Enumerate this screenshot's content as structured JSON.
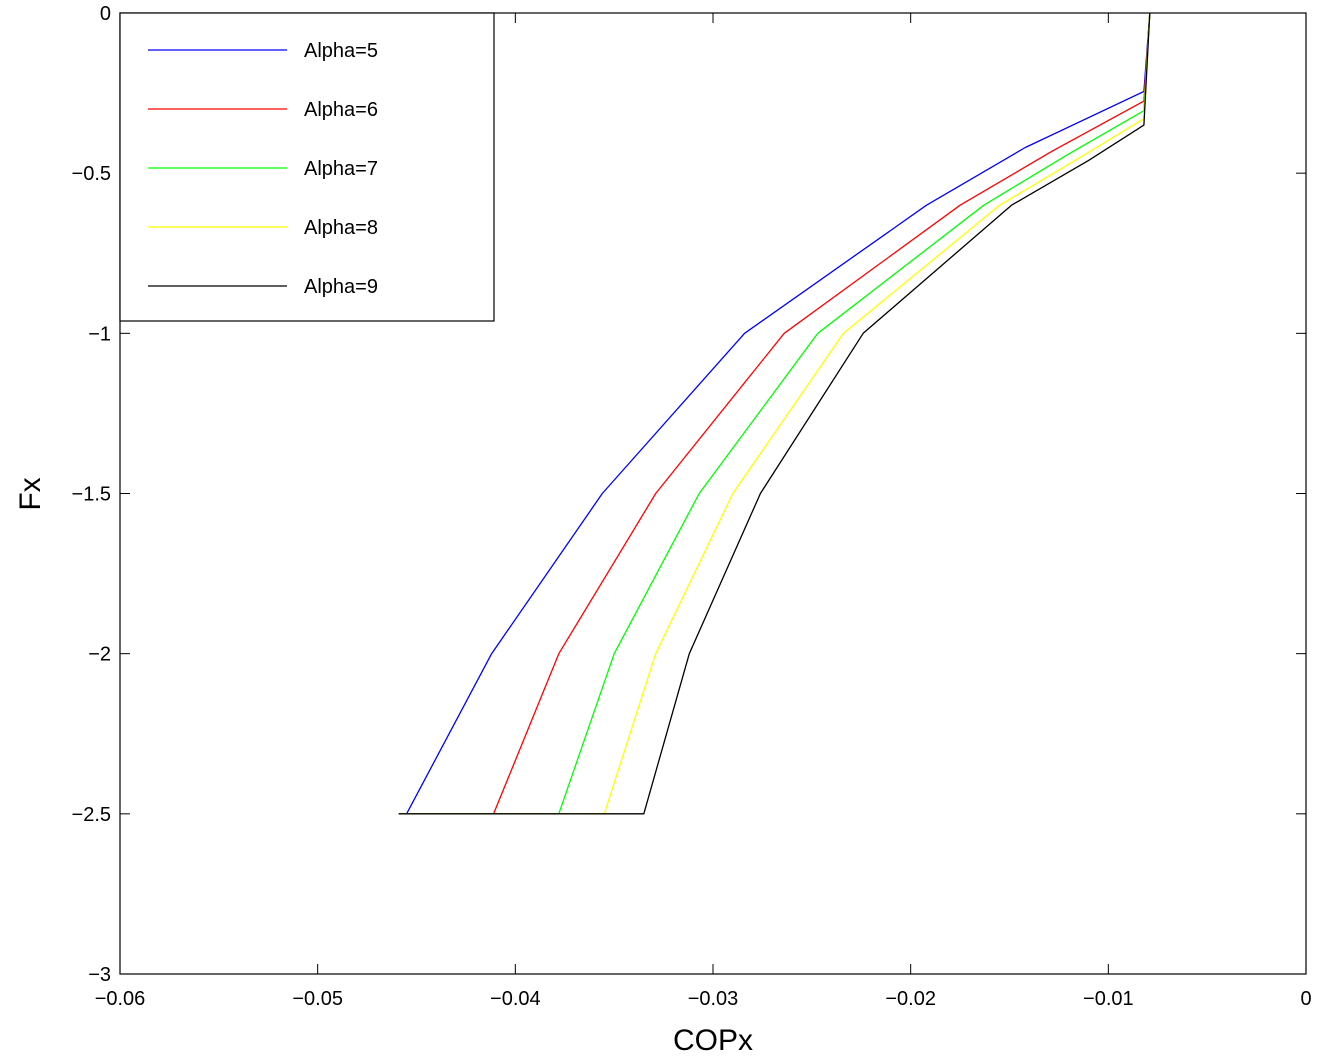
{
  "chart_data": {
    "type": "line",
    "title": "",
    "xlabel": "COPx",
    "ylabel": "Fx",
    "xlim": [
      -0.06,
      0
    ],
    "ylim": [
      -3,
      0
    ],
    "xticks": [
      -0.06,
      -0.05,
      -0.04,
      -0.03,
      -0.02,
      -0.01,
      0
    ],
    "xtick_labels": [
      "−0.06",
      "−0.05",
      "−0.04",
      "−0.03",
      "−0.02",
      "−0.01",
      "0"
    ],
    "yticks": [
      0,
      -0.5,
      -1,
      -1.5,
      -2,
      -2.5,
      -3
    ],
    "ytick_labels": [
      "0",
      "−0.5",
      "−1",
      "−1.5",
      "−2",
      "−2.5",
      "−3"
    ],
    "grid": false,
    "legend_position": "top-left",
    "series": [
      {
        "name": "Alpha=5",
        "color": "#0000ff",
        "points": [
          [
            -0.0459,
            -2.5
          ],
          [
            -0.0455,
            -2.5
          ],
          [
            -0.0412,
            -2.0
          ],
          [
            -0.0356,
            -1.5
          ],
          [
            -0.0284,
            -1.0
          ],
          [
            -0.0192,
            -0.6
          ],
          [
            -0.0142,
            -0.42
          ],
          [
            -0.0082,
            -0.245
          ],
          [
            -0.0079,
            0
          ]
        ]
      },
      {
        "name": "Alpha=6",
        "color": "#ff0000",
        "points": [
          [
            -0.0459,
            -2.5
          ],
          [
            -0.0411,
            -2.5
          ],
          [
            -0.0378,
            -2.0
          ],
          [
            -0.0329,
            -1.5
          ],
          [
            -0.0264,
            -1.0
          ],
          [
            -0.0175,
            -0.6
          ],
          [
            -0.0128,
            -0.43
          ],
          [
            -0.0082,
            -0.275
          ],
          [
            -0.0079,
            0
          ]
        ]
      },
      {
        "name": "Alpha=7",
        "color": "#00ff00",
        "points": [
          [
            -0.0459,
            -2.5
          ],
          [
            -0.0378,
            -2.5
          ],
          [
            -0.035,
            -2.0
          ],
          [
            -0.0307,
            -1.5
          ],
          [
            -0.0247,
            -1.0
          ],
          [
            -0.0163,
            -0.6
          ],
          [
            -0.012,
            -0.44
          ],
          [
            -0.0082,
            -0.305
          ],
          [
            -0.0079,
            0
          ]
        ]
      },
      {
        "name": "Alpha=8",
        "color": "#ffff00",
        "points": [
          [
            -0.0459,
            -2.5
          ],
          [
            -0.0355,
            -2.5
          ],
          [
            -0.0329,
            -2.0
          ],
          [
            -0.029,
            -1.5
          ],
          [
            -0.0234,
            -1.0
          ],
          [
            -0.0155,
            -0.6
          ],
          [
            -0.0114,
            -0.45
          ],
          [
            -0.0082,
            -0.33
          ],
          [
            -0.0079,
            0
          ]
        ]
      },
      {
        "name": "Alpha=9",
        "color": "#000000",
        "points": [
          [
            -0.0459,
            -2.5
          ],
          [
            -0.0335,
            -2.5
          ],
          [
            -0.0312,
            -2.0
          ],
          [
            -0.0276,
            -1.5
          ],
          [
            -0.0224,
            -1.0
          ],
          [
            -0.0149,
            -0.6
          ],
          [
            -0.011,
            -0.46
          ],
          [
            -0.0082,
            -0.35
          ],
          [
            -0.0079,
            0
          ]
        ]
      }
    ]
  }
}
